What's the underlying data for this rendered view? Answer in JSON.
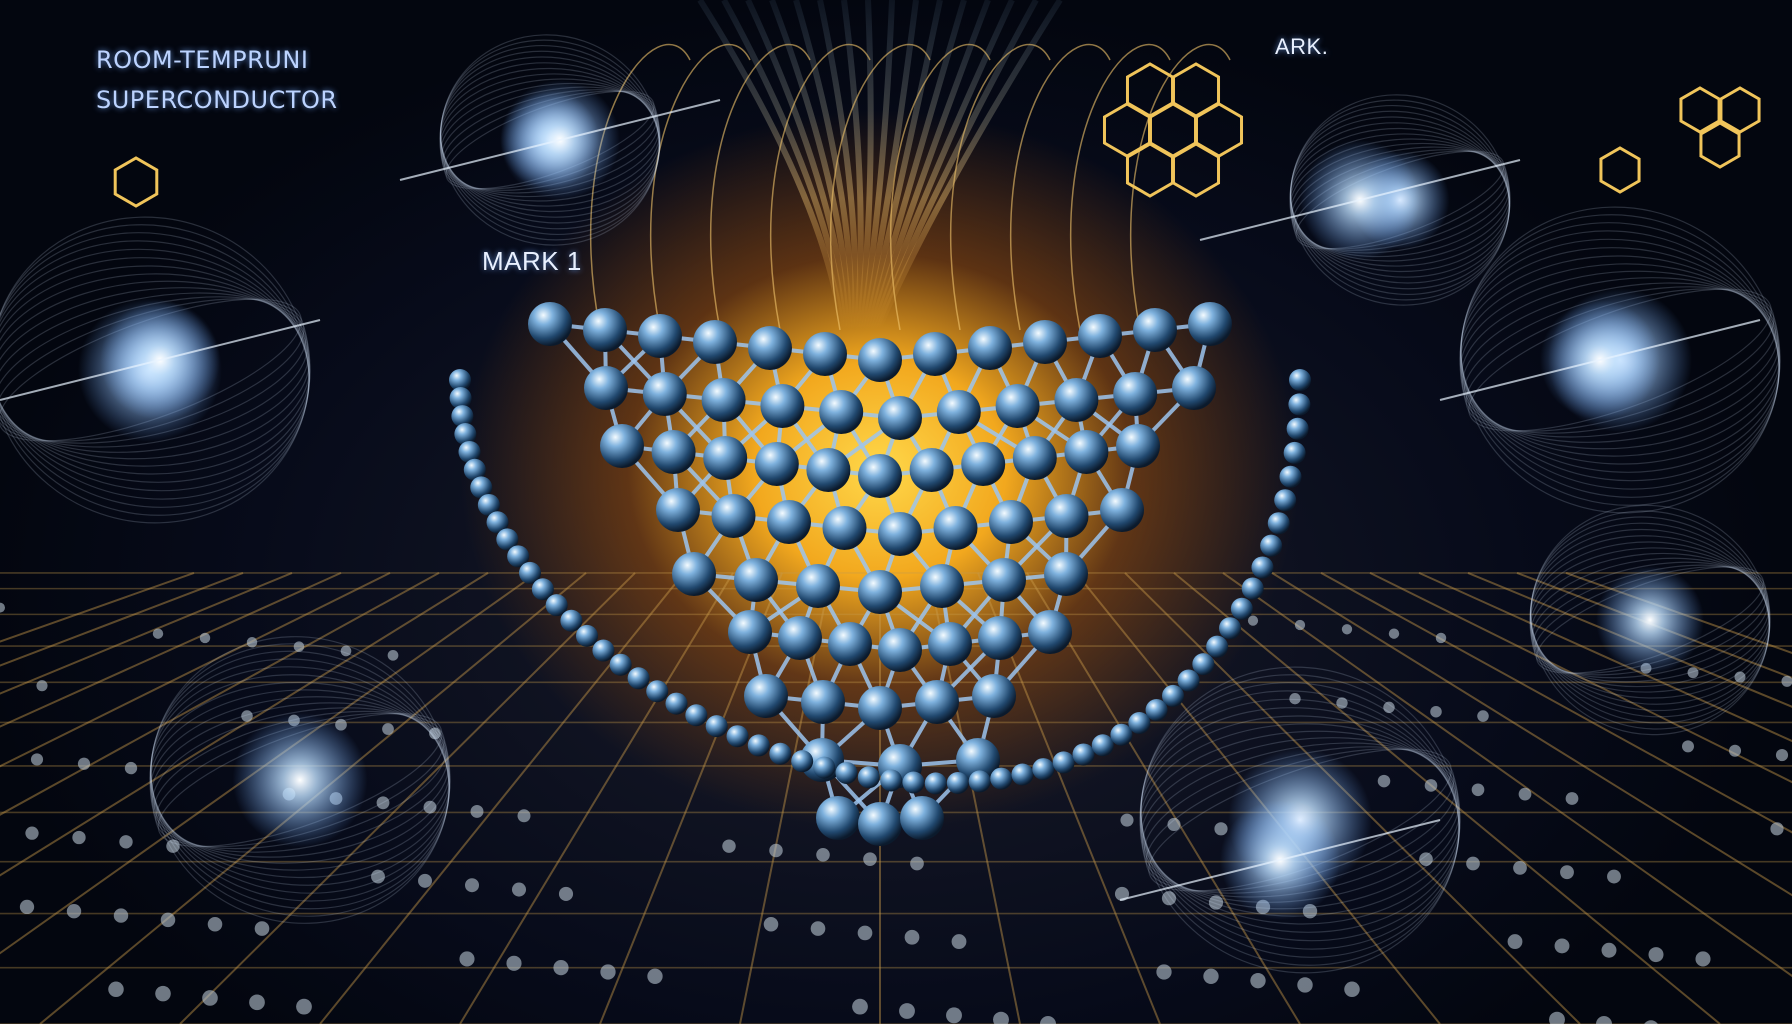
{
  "labels": {
    "title_line_1": "ROOM-TEMPRUNI",
    "title_line_2": "SUPERCONDUCTOR",
    "mark": "MARK 1",
    "ark": "ARK."
  },
  "colors": {
    "background": "#050a18",
    "core_glow": "#ffd84a",
    "atom": "#6fa8d8",
    "bond": "#9cc4ee",
    "grid_line": "#c79a4a",
    "wave": "#d6e8ff"
  }
}
